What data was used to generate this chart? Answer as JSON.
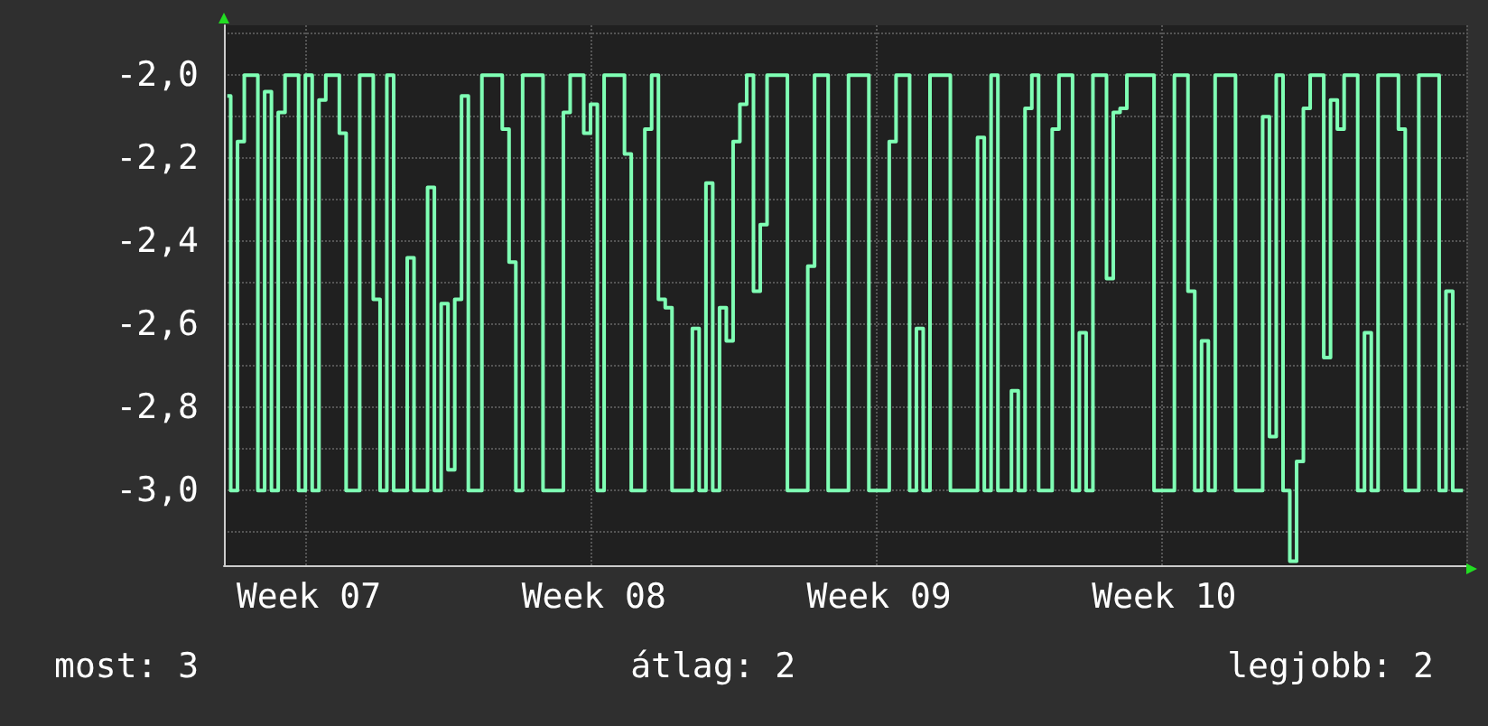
{
  "chart_data": {
    "type": "step",
    "categories": [
      null,
      null,
      null,
      null,
      null,
      null,
      null,
      null,
      null,
      null,
      null,
      null,
      "Week 07",
      null,
      null,
      null,
      null,
      null,
      null,
      null,
      null,
      null,
      null,
      null,
      null,
      null,
      null,
      null,
      null,
      null,
      null,
      null,
      null,
      null,
      null,
      null,
      null,
      null,
      null,
      null,
      null,
      null,
      null,
      null,
      null,
      null,
      null,
      null,
      null,
      null,
      null,
      null,
      null,
      null,
      "Week 08",
      null,
      null,
      null,
      null,
      null,
      null,
      null,
      null,
      null,
      null,
      null,
      null,
      null,
      null,
      null,
      null,
      null,
      null,
      null,
      null,
      null,
      null,
      null,
      null,
      null,
      null,
      null,
      null,
      null,
      null,
      null,
      null,
      null,
      null,
      null,
      null,
      null,
      null,
      null,
      null,
      null,
      "Week 09",
      null,
      null,
      null,
      null,
      null,
      null,
      null,
      null,
      null,
      null,
      null,
      null,
      null,
      null,
      null,
      null,
      null,
      null,
      null,
      null,
      null,
      null,
      null,
      null,
      null,
      null,
      null,
      null,
      null,
      null,
      null,
      null,
      null,
      null,
      null,
      null,
      null,
      null,
      null,
      null,
      null,
      "Week 10",
      null,
      null,
      null,
      null,
      null,
      null,
      null,
      null,
      null,
      null,
      null,
      null,
      null,
      null,
      null,
      null,
      null,
      null,
      null,
      null,
      null,
      null,
      null,
      null,
      null,
      null,
      null,
      null,
      null,
      null,
      null,
      null,
      null,
      null,
      null,
      null,
      null,
      null,
      null,
      null,
      null,
      null,
      null,
      null
    ],
    "series": [
      {
        "color": "#7fffb4",
        "values": [
          -2.05,
          -3.0,
          -2.16,
          -2.0,
          -2.0,
          -3.0,
          -2.04,
          -3.0,
          -2.09,
          -2.0,
          -2.0,
          -3.0,
          -2.0,
          -3.0,
          -2.06,
          -2.0,
          -2.0,
          -2.14,
          -3.0,
          -3.0,
          -2.0,
          -2.0,
          -2.54,
          -3.0,
          -2.0,
          -3.0,
          -3.0,
          -2.44,
          -3.0,
          -3.0,
          -2.27,
          -3.0,
          -2.55,
          -2.95,
          -2.54,
          -2.05,
          -3.0,
          -3.0,
          -2.0,
          -2.0,
          -2.0,
          -2.13,
          -2.45,
          -3.0,
          -2.0,
          -2.0,
          -2.0,
          -3.0,
          -3.0,
          -3.0,
          -2.09,
          -2.0,
          -2.0,
          -2.14,
          -2.07,
          -3.0,
          -2.0,
          -2.0,
          -2.0,
          -2.19,
          -3.0,
          -3.0,
          -2.13,
          -2.0,
          -2.54,
          -2.56,
          -3.0,
          -3.0,
          -3.0,
          -2.61,
          -3.0,
          -2.26,
          -3.0,
          -2.56,
          -2.64,
          -2.16,
          -2.07,
          -2.0,
          -2.52,
          -2.36,
          -2.0,
          -2.0,
          -2.0,
          -3.0,
          -3.0,
          -3.0,
          -2.46,
          -2.0,
          -2.0,
          -3.0,
          -3.0,
          -3.0,
          -2.0,
          -2.0,
          -2.0,
          -3.0,
          -3.0,
          -3.0,
          -2.16,
          -2.0,
          -2.0,
          -3.0,
          -2.61,
          -3.0,
          -2.0,
          -2.0,
          -2.0,
          -3.0,
          -3.0,
          -3.0,
          -3.0,
          -2.15,
          -3.0,
          -2.0,
          -3.0,
          -3.0,
          -2.76,
          -3.0,
          -2.08,
          -2.0,
          -3.0,
          -3.0,
          -2.13,
          -2.0,
          -2.0,
          -3.0,
          -2.62,
          -3.0,
          -2.0,
          -2.0,
          -2.49,
          -2.09,
          -2.08,
          -2.0,
          -2.0,
          -2.0,
          -2.0,
          -3.0,
          -3.0,
          -3.0,
          -2.0,
          -2.0,
          -2.52,
          -3.0,
          -2.64,
          -3.0,
          -2.0,
          -2.0,
          -2.0,
          -3.0,
          -3.0,
          -3.0,
          -3.0,
          -2.1,
          -2.87,
          -2.0,
          -3.0,
          -3.17,
          -2.93,
          -2.08,
          -2.0,
          -2.0,
          -2.68,
          -2.06,
          -2.13,
          -2.0,
          -2.0,
          -3.0,
          -2.62,
          -3.0,
          -2.0,
          -2.0,
          -2.0,
          -2.13,
          -3.0,
          -3.0,
          -2.0,
          -2.0,
          -2.0,
          -3.0,
          -2.52,
          -3.0,
          -3.0
        ]
      }
    ],
    "ylim": [
      -3.18,
      -1.88
    ],
    "yticks": [
      {
        "value": -3.1,
        "label": null
      },
      {
        "value": -3.0,
        "label": "-3,0"
      },
      {
        "value": -2.9,
        "label": null
      },
      {
        "value": -2.8,
        "label": "-2,8"
      },
      {
        "value": -2.7,
        "label": null
      },
      {
        "value": -2.6,
        "label": "-2,6"
      },
      {
        "value": -2.5,
        "label": null
      },
      {
        "value": -2.4,
        "label": "-2,4"
      },
      {
        "value": -2.3,
        "label": null
      },
      {
        "value": -2.2,
        "label": "-2,2"
      },
      {
        "value": -2.1,
        "label": null
      },
      {
        "value": -2.0,
        "label": "-2,0"
      },
      {
        "value": -1.9,
        "label": null
      }
    ],
    "grid": true,
    "line_style": "solid",
    "marker": "none",
    "annotations": [
      "most: 3",
      "átlag: 2",
      "legjobb: 2"
    ]
  }
}
